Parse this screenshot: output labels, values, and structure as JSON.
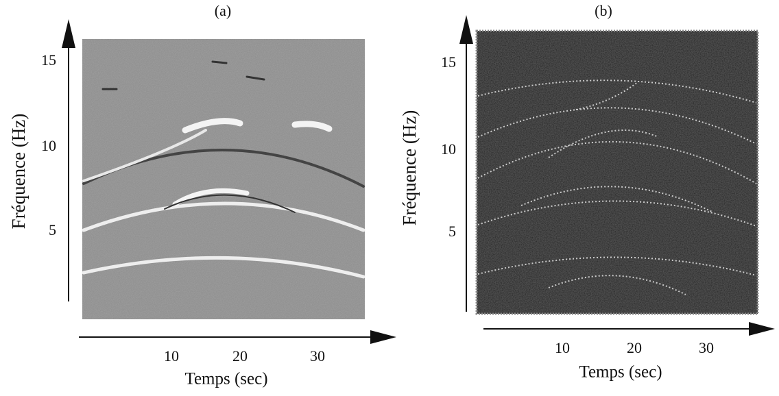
{
  "panels": [
    {
      "label": "(a)",
      "y_axis_label": "Fréquence (Hz)",
      "x_axis_label": "Temps (sec)",
      "y_ticks": [
        "5",
        "10",
        "15"
      ],
      "x_ticks": [
        "10",
        "20",
        "30"
      ]
    },
    {
      "label": "(b)",
      "y_axis_label": "Fréquence (Hz)",
      "x_axis_label": "Temps (sec)",
      "y_ticks": [
        "5",
        "10",
        "15"
      ],
      "x_ticks": [
        "10",
        "20",
        "30"
      ]
    }
  ]
}
